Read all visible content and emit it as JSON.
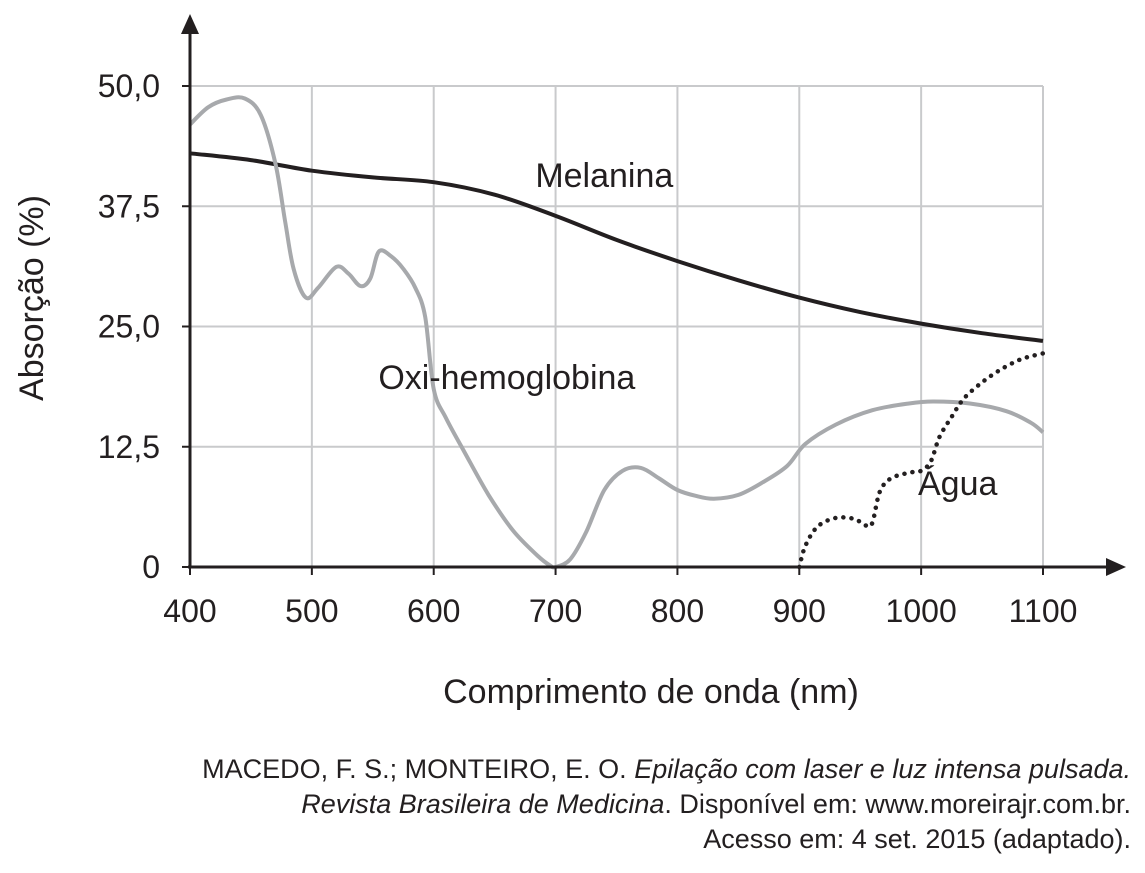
{
  "chart_data": {
    "type": "line",
    "xlabel": "Comprimento de onda (nm)",
    "ylabel": "Absorção (%)",
    "xlim": [
      400,
      1100
    ],
    "ylim": [
      0,
      50
    ],
    "x_ticks": [
      400,
      500,
      600,
      700,
      800,
      900,
      1000,
      1100
    ],
    "x_tick_labels": [
      "400",
      "500",
      "600",
      "700",
      "800",
      "900",
      "1000",
      "1100"
    ],
    "y_ticks": [
      0,
      12.5,
      25,
      37.5,
      50
    ],
    "y_tick_labels": [
      "0",
      "12,5",
      "25,0",
      "37,5",
      "50,0"
    ],
    "grid": true,
    "series": [
      {
        "name": "Melanina",
        "color": "#231f20",
        "style": "solid",
        "label_at": [
          740,
          39.5
        ],
        "points": [
          [
            400,
            43
          ],
          [
            450,
            42.3
          ],
          [
            500,
            41.2
          ],
          [
            550,
            40.5
          ],
          [
            600,
            40
          ],
          [
            650,
            38.7
          ],
          [
            700,
            36.5
          ],
          [
            750,
            34
          ],
          [
            800,
            31.8
          ],
          [
            850,
            29.8
          ],
          [
            900,
            28
          ],
          [
            950,
            26.5
          ],
          [
            1000,
            25.3
          ],
          [
            1050,
            24.3
          ],
          [
            1100,
            23.5
          ]
        ]
      },
      {
        "name": "Oxi-hemoglobina",
        "color": "#a7a9ac",
        "style": "solid",
        "label_at": [
          660,
          18.5
        ],
        "points": [
          [
            400,
            46
          ],
          [
            415,
            47.8
          ],
          [
            430,
            48.6
          ],
          [
            445,
            48.7
          ],
          [
            458,
            47
          ],
          [
            470,
            42
          ],
          [
            478,
            36
          ],
          [
            485,
            31
          ],
          [
            495,
            28
          ],
          [
            505,
            29
          ],
          [
            520,
            31.2
          ],
          [
            530,
            30.5
          ],
          [
            540,
            29.2
          ],
          [
            548,
            30
          ],
          [
            555,
            32.8
          ],
          [
            565,
            32.3
          ],
          [
            575,
            31
          ],
          [
            585,
            29
          ],
          [
            593,
            26
          ],
          [
            600,
            18.5
          ],
          [
            610,
            15.5
          ],
          [
            625,
            12
          ],
          [
            645,
            7.5
          ],
          [
            665,
            3.8
          ],
          [
            685,
            1.2
          ],
          [
            695,
            0.2
          ],
          [
            700,
            0
          ],
          [
            712,
            0.8
          ],
          [
            725,
            3.6
          ],
          [
            740,
            8
          ],
          [
            755,
            10
          ],
          [
            770,
            10.3
          ],
          [
            785,
            9.2
          ],
          [
            800,
            8
          ],
          [
            815,
            7.4
          ],
          [
            830,
            7.1
          ],
          [
            850,
            7.5
          ],
          [
            870,
            8.8
          ],
          [
            890,
            10.5
          ],
          [
            905,
            12.8
          ],
          [
            930,
            14.8
          ],
          [
            960,
            16.3
          ],
          [
            990,
            17
          ],
          [
            1010,
            17.2
          ],
          [
            1040,
            17
          ],
          [
            1070,
            16.2
          ],
          [
            1090,
            15
          ],
          [
            1100,
            14
          ]
        ]
      },
      {
        "name": "Água",
        "color": "#231f20",
        "style": "dotted",
        "label_at": [
          1030,
          7.5
        ],
        "points": [
          [
            900,
            0
          ],
          [
            905,
            2.2
          ],
          [
            915,
            4.2
          ],
          [
            930,
            5.1
          ],
          [
            945,
            5
          ],
          [
            955,
            4.3
          ],
          [
            960,
            4.6
          ],
          [
            966,
            7.8
          ],
          [
            975,
            9.2
          ],
          [
            990,
            9.8
          ],
          [
            1000,
            10
          ],
          [
            1008,
            11
          ],
          [
            1015,
            13.5
          ],
          [
            1025,
            15.6
          ],
          [
            1035,
            17.5
          ],
          [
            1050,
            19.2
          ],
          [
            1065,
            20.5
          ],
          [
            1080,
            21.5
          ],
          [
            1090,
            21.9
          ],
          [
            1100,
            22.2
          ]
        ]
      }
    ]
  },
  "source": {
    "line1_authors": "MACEDO, F. S.; MONTEIRO, E. O.",
    "line1_title": "Epilação com laser e luz intensa pulsada.",
    "line2_journal": "Revista Brasileira de Medicina",
    "line2_rest": ". Disponível em: www.moreirajr.com.br.",
    "line3": "Acesso em: 4 set. 2015 (adaptado)."
  }
}
